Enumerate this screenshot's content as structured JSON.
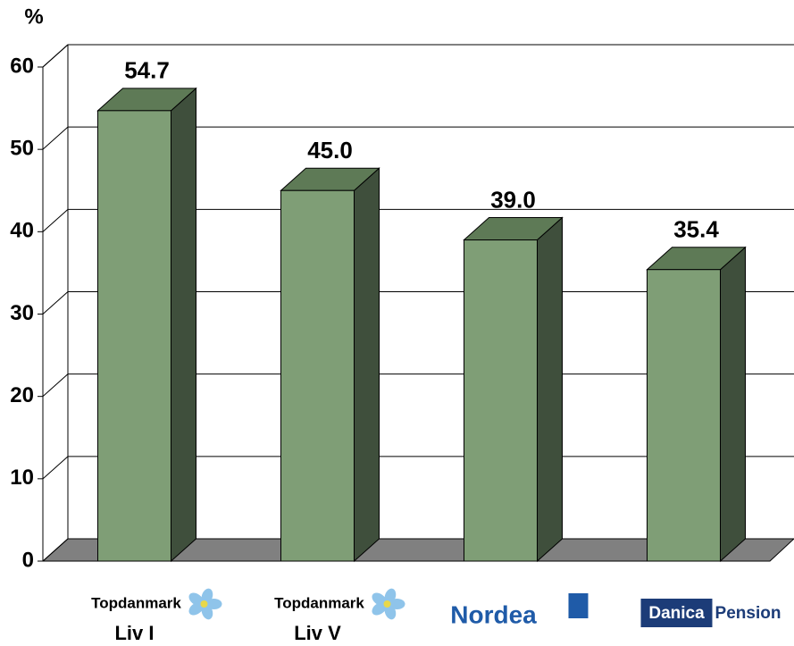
{
  "chart_data": {
    "type": "bar3d",
    "ylabel": "%",
    "categories": [
      "Liv I",
      "Liv V",
      null,
      null
    ],
    "logos": [
      [
        "Topdanmark"
      ],
      [
        "Topdanmark"
      ],
      [
        "Nordea"
      ],
      [
        "Danica",
        "Pension"
      ]
    ],
    "values": [
      54.7,
      45.0,
      39.0,
      35.4
    ],
    "value_labels": [
      "54.7",
      "45.0",
      "39.0",
      "35.4"
    ],
    "color": "#7f9e76",
    "ylim": [
      0,
      60
    ],
    "yticks": [
      0,
      10,
      20,
      30,
      40,
      50,
      60
    ],
    "grid": true
  }
}
